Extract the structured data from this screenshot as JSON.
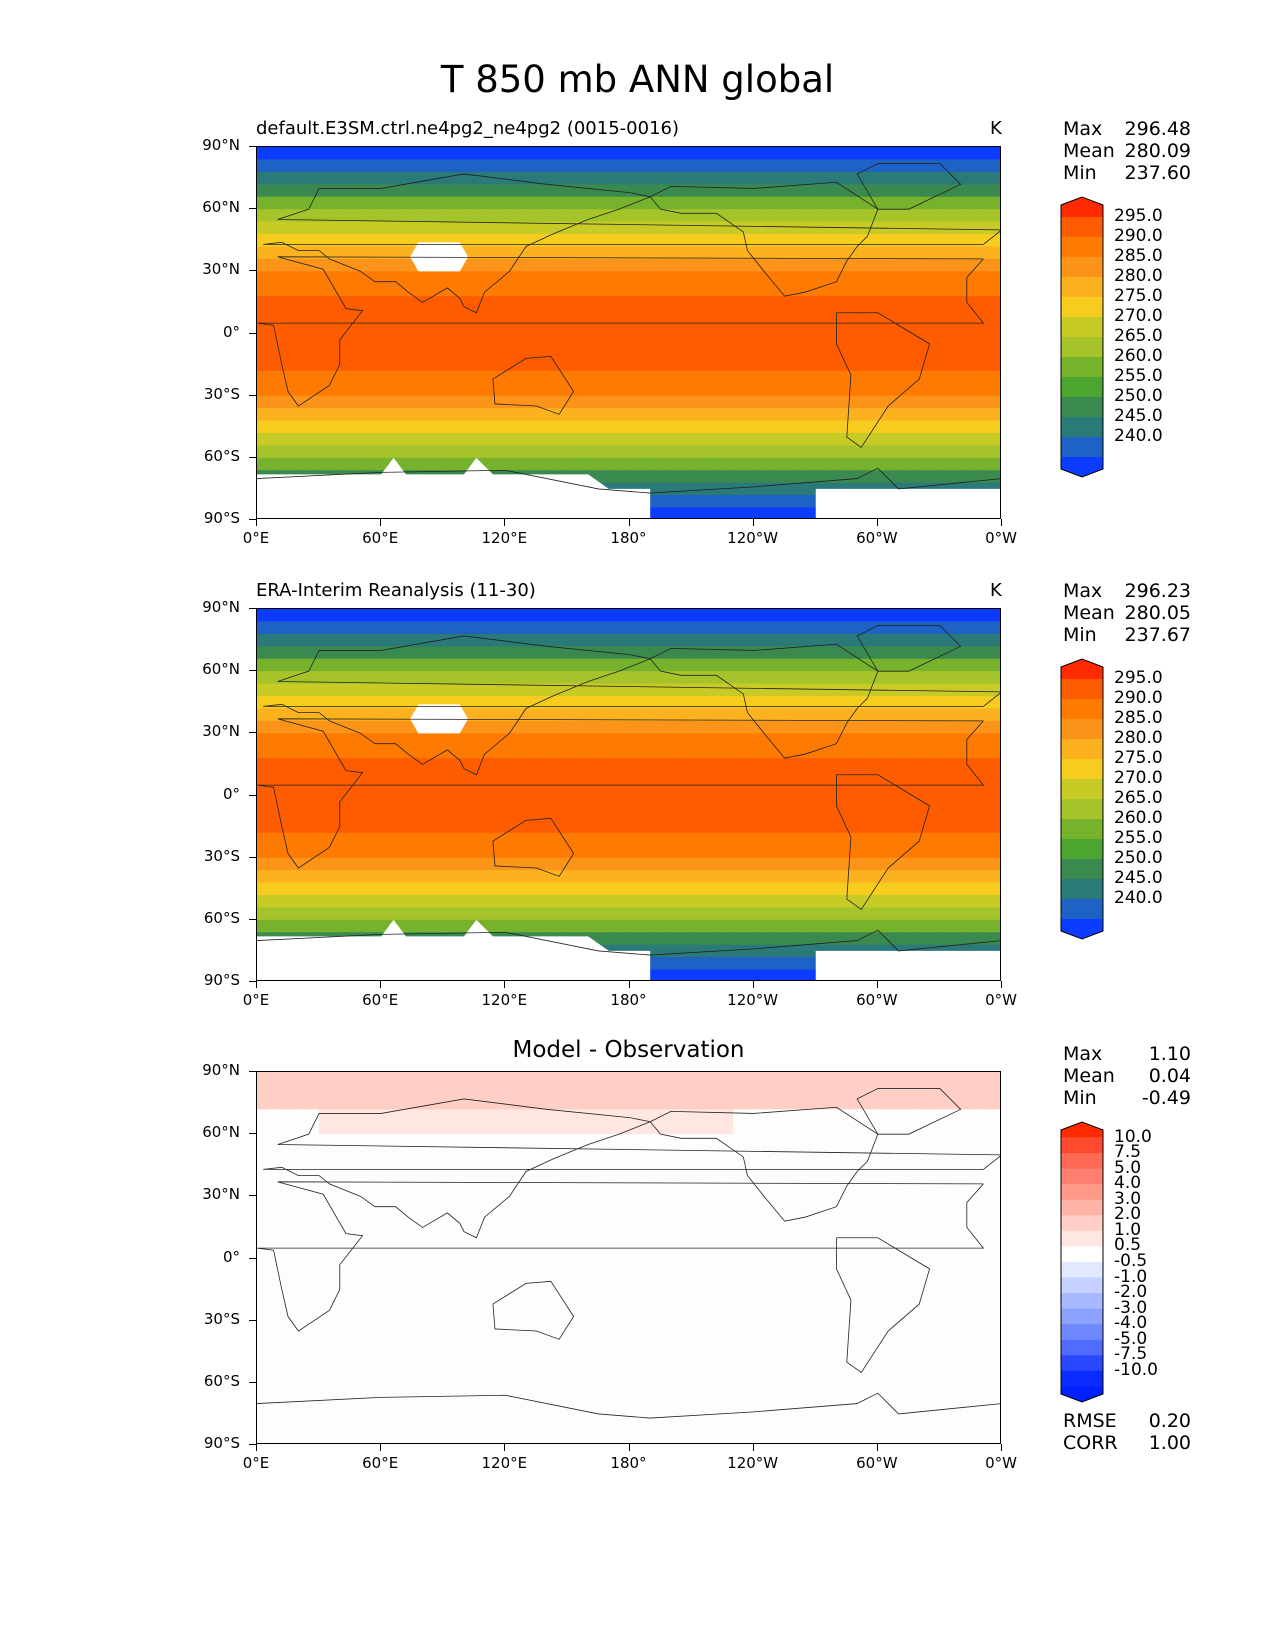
{
  "figure": {
    "title": "T 850 mb ANN global"
  },
  "panels": [
    {
      "id": "test",
      "title_left": "default.E3SM.ctrl.ne4pg2_ne4pg2 (0015-0016)",
      "title_center": "",
      "units": "K",
      "stats": [
        {
          "label": "Max",
          "value": "296.48"
        },
        {
          "label": "Mean",
          "value": "280.09"
        },
        {
          "label": "Min",
          "value": "237.60"
        }
      ],
      "colorbar": {
        "labels": [
          "295.0",
          "290.0",
          "285.0",
          "280.0",
          "275.0",
          "270.0",
          "265.0",
          "260.0",
          "255.0",
          "250.0",
          "245.0",
          "240.0"
        ],
        "colors": [
          "#ff2a00",
          "#ff5c00",
          "#ff7a00",
          "#fb9418",
          "#fbb21e",
          "#f6cc1f",
          "#c8cb25",
          "#a4c42a",
          "#76b22c",
          "#4ca52e",
          "#3a8a50",
          "#2a7a7a",
          "#1d62c4",
          "#0b3cff"
        ]
      },
      "extra_stats": []
    },
    {
      "id": "reference",
      "title_left": "ERA-Interim Reanalysis (11-30)",
      "title_center": "",
      "units": "K",
      "stats": [
        {
          "label": "Max",
          "value": "296.23"
        },
        {
          "label": "Mean",
          "value": "280.05"
        },
        {
          "label": "Min",
          "value": "237.67"
        }
      ],
      "colorbar": {
        "labels": [
          "295.0",
          "290.0",
          "285.0",
          "280.0",
          "275.0",
          "270.0",
          "265.0",
          "260.0",
          "255.0",
          "250.0",
          "245.0",
          "240.0"
        ],
        "colors": [
          "#ff2a00",
          "#ff5c00",
          "#ff7a00",
          "#fb9418",
          "#fbb21e",
          "#f6cc1f",
          "#c8cb25",
          "#a4c42a",
          "#76b22c",
          "#4ca52e",
          "#3a8a50",
          "#2a7a7a",
          "#1d62c4",
          "#0b3cff"
        ]
      },
      "extra_stats": []
    },
    {
      "id": "difference",
      "title_left": "",
      "title_center": "Model - Observation",
      "units": "",
      "stats": [
        {
          "label": "Max",
          "value": "1.10"
        },
        {
          "label": "Mean",
          "value": "0.04"
        },
        {
          "label": "Min",
          "value": "-0.49"
        }
      ],
      "colorbar": {
        "labels": [
          "10.0",
          "7.5",
          "5.0",
          "4.0",
          "3.0",
          "2.0",
          "1.0",
          "0.5",
          "-0.5",
          "-1.0",
          "-2.0",
          "-3.0",
          "-4.0",
          "-5.0",
          "-7.5",
          "-10.0"
        ],
        "colors": [
          "#ff2a00",
          "#ff4a30",
          "#ff6a55",
          "#ff8070",
          "#ff9a8a",
          "#ffb3a6",
          "#ffcec4",
          "#ffe6e0",
          "#ffffff",
          "#e2e8ff",
          "#c4d0ff",
          "#a8b8ff",
          "#8ca2ff",
          "#6f88ff",
          "#4f6cff",
          "#2a48ff",
          "#0b2cff",
          "#0020ff"
        ]
      },
      "extra_stats": [
        {
          "label": "RMSE",
          "value": "0.20"
        },
        {
          "label": "CORR",
          "value": "1.00"
        }
      ]
    }
  ],
  "axes": {
    "yticks": [
      "90°N",
      "60°N",
      "30°N",
      "0°",
      "30°S",
      "60°S",
      "90°S"
    ],
    "xticks": [
      "0°E",
      "60°E",
      "120°E",
      "180°",
      "120°W",
      "60°W",
      "0°W"
    ]
  }
}
